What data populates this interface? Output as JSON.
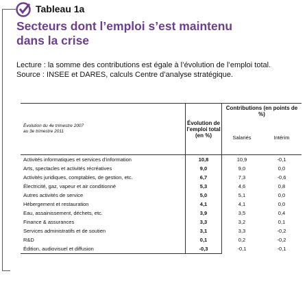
{
  "header": {
    "label": "Tableau 1a",
    "title": "Secteurs dont l’emploi s’est maintenu dans la crise"
  },
  "notes": [
    "Lecture : la somme des contributions est égale à l’évolution de l’emploi total.",
    "Source : INSEE et DARES, calculs Centre d’analyse stratégique."
  ],
  "table": {
    "stub_header": [
      "Évolution du 4e trimestre 2007",
      "au 3e trimestre 2011"
    ],
    "columns": {
      "total": "Évolution de l’emploi total (en %)",
      "contributions": "Contributions (en points de %)",
      "salaries": "Salariés",
      "interim": "Intérim"
    },
    "rows": [
      [
        "Activités informatiques et services d’information",
        "10,8",
        "10,9",
        "-0,1"
      ],
      [
        "Arts, spectacles et activités récréatives",
        "9,0",
        "9,0",
        "0,0"
      ],
      [
        "Activités juridiques, comptables, de gestion, etc.",
        "6,7",
        "7,3",
        "-0,6"
      ],
      [
        "Électricité, gaz, vapeur et air conditionné",
        "5,3",
        "4,6",
        "0,8"
      ],
      [
        "Autres activités de service",
        "5,0",
        "5,1",
        "0,0"
      ],
      [
        "Hébergement et restauration",
        "4,1",
        "4,1",
        "0,0"
      ],
      [
        "Eau, assainissement, déchets, etc.",
        "3,9",
        "3,5",
        "0,4"
      ],
      [
        "Finance & assurances",
        "3,3",
        "3,2",
        "0,1"
      ],
      [
        "Services administratifs et de soutien",
        "3,1",
        "3,3",
        "-0,2"
      ],
      [
        "R&D",
        "0,1",
        "0,2",
        "-0,2"
      ],
      [
        "Édition, audiovisuel et diffusion",
        "-0,3",
        "-0,1",
        "-0,1"
      ]
    ]
  }
}
